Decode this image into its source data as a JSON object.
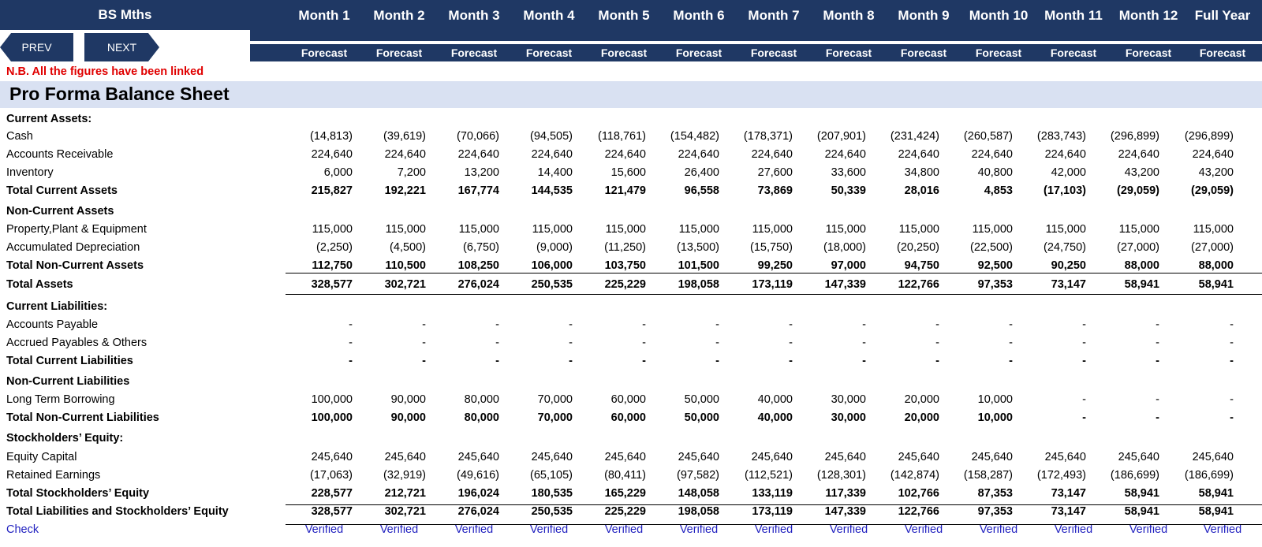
{
  "header": {
    "title": "BS Mths",
    "months": [
      "Month 1",
      "Month 2",
      "Month 3",
      "Month 4",
      "Month 5",
      "Month 6",
      "Month 7",
      "Month 8",
      "Month 9",
      "Month 10",
      "Month 11",
      "Month 12",
      "Full Year"
    ],
    "subheader": [
      "Forecast",
      "Forecast",
      "Forecast",
      "Forecast",
      "Forecast",
      "Forecast",
      "Forecast",
      "Forecast",
      "Forecast",
      "Forecast",
      "Forecast",
      "Forecast",
      "Forecast"
    ]
  },
  "nav": {
    "prev_label": "PREV",
    "next_label": "NEXT"
  },
  "note": "N.B. All the figures have been linked",
  "section_title": "Pro Forma Balance Sheet",
  "colors": {
    "header_bg": "#1f3864",
    "section_bg": "#d9e1f2",
    "note": "#e00000",
    "check": "#1f1fbf"
  },
  "rows": [
    {
      "label": "Current Assets:",
      "style": "head",
      "values": []
    },
    {
      "label": "Cash",
      "style": "normal",
      "values": [
        "(14,813)",
        "(39,619)",
        "(70,066)",
        "(94,505)",
        "(118,761)",
        "(154,482)",
        "(178,371)",
        "(207,901)",
        "(231,424)",
        "(260,587)",
        "(283,743)",
        "(296,899)",
        "(296,899)"
      ]
    },
    {
      "label": "Accounts Receivable",
      "style": "normal",
      "values": [
        "224,640",
        "224,640",
        "224,640",
        "224,640",
        "224,640",
        "224,640",
        "224,640",
        "224,640",
        "224,640",
        "224,640",
        "224,640",
        "224,640",
        "224,640"
      ]
    },
    {
      "label": "Inventory",
      "style": "normal",
      "values": [
        "6,000",
        "7,200",
        "13,200",
        "14,400",
        "15,600",
        "26,400",
        "27,600",
        "33,600",
        "34,800",
        "40,800",
        "42,000",
        "43,200",
        "43,200"
      ]
    },
    {
      "label": "Total Current Assets",
      "style": "bold",
      "values": [
        "215,827",
        "192,221",
        "167,774",
        "144,535",
        "121,479",
        "96,558",
        "73,869",
        "50,339",
        "28,016",
        "4,853",
        "(17,103)",
        "(29,059)",
        "(29,059)"
      ]
    },
    {
      "label": "Non-Current Assets",
      "style": "head",
      "values": []
    },
    {
      "label": "Property,Plant & Equipment",
      "style": "normal",
      "values": [
        "115,000",
        "115,000",
        "115,000",
        "115,000",
        "115,000",
        "115,000",
        "115,000",
        "115,000",
        "115,000",
        "115,000",
        "115,000",
        "115,000",
        "115,000"
      ]
    },
    {
      "label": "Accumulated Depreciation",
      "style": "normal",
      "values": [
        "(2,250)",
        "(4,500)",
        "(6,750)",
        "(9,000)",
        "(11,250)",
        "(13,500)",
        "(15,750)",
        "(18,000)",
        "(20,250)",
        "(22,500)",
        "(24,750)",
        "(27,000)",
        "(27,000)"
      ]
    },
    {
      "label": "Total Non-Current Assets",
      "style": "bold",
      "values": [
        "112,750",
        "110,500",
        "108,250",
        "106,000",
        "103,750",
        "101,500",
        "99,250",
        "97,000",
        "94,750",
        "92,500",
        "90,250",
        "88,000",
        "88,000"
      ]
    },
    {
      "label": "Total Assets",
      "style": "bold",
      "values": [
        "328,577",
        "302,721",
        "276,024",
        "250,535",
        "225,229",
        "198,058",
        "173,119",
        "147,339",
        "122,766",
        "97,353",
        "73,147",
        "58,941",
        "58,941"
      ]
    },
    {
      "label": "Current Liabilities:",
      "style": "head",
      "values": []
    },
    {
      "label": "Accounts Payable",
      "style": "normal",
      "values": [
        "-",
        "-",
        "-",
        "-",
        "-",
        "-",
        "-",
        "-",
        "-",
        "-",
        "-",
        "-",
        "-"
      ]
    },
    {
      "label": "Accrued Payables & Others",
      "style": "normal",
      "values": [
        "-",
        "-",
        "-",
        "-",
        "-",
        "-",
        "-",
        "-",
        "-",
        "-",
        "-",
        "-",
        "-"
      ]
    },
    {
      "label": "Total Current Liabilities",
      "style": "bold",
      "values": [
        "-",
        "-",
        "-",
        "-",
        "-",
        "-",
        "-",
        "-",
        "-",
        "-",
        "-",
        "-",
        "-"
      ]
    },
    {
      "label": "Non-Current Liabilities",
      "style": "head",
      "values": []
    },
    {
      "label": "Long Term Borrowing",
      "style": "normal",
      "values": [
        "100,000",
        "90,000",
        "80,000",
        "70,000",
        "60,000",
        "50,000",
        "40,000",
        "30,000",
        "20,000",
        "10,000",
        "-",
        "-",
        "-"
      ]
    },
    {
      "label": "Total Non-Current Liabilities",
      "style": "bold",
      "values": [
        "100,000",
        "90,000",
        "80,000",
        "70,000",
        "60,000",
        "50,000",
        "40,000",
        "30,000",
        "20,000",
        "10,000",
        "-",
        "-",
        "-"
      ]
    },
    {
      "label": "Stockholders’ Equity:",
      "style": "head",
      "values": []
    },
    {
      "label": "Equity Capital",
      "style": "normal",
      "values": [
        "245,640",
        "245,640",
        "245,640",
        "245,640",
        "245,640",
        "245,640",
        "245,640",
        "245,640",
        "245,640",
        "245,640",
        "245,640",
        "245,640",
        "245,640"
      ]
    },
    {
      "label": "Retained Earnings",
      "style": "normal",
      "values": [
        "(17,063)",
        "(32,919)",
        "(49,616)",
        "(65,105)",
        "(80,411)",
        "(97,582)",
        "(112,521)",
        "(128,301)",
        "(142,874)",
        "(158,287)",
        "(172,493)",
        "(186,699)",
        "(186,699)"
      ]
    },
    {
      "label": "Total Stockholders’ Equity",
      "style": "bold",
      "values": [
        "228,577",
        "212,721",
        "196,024",
        "180,535",
        "165,229",
        "148,058",
        "133,119",
        "117,339",
        "102,766",
        "87,353",
        "73,147",
        "58,941",
        "58,941"
      ]
    },
    {
      "label": "Total Liabilities and Stockholders’ Equity",
      "style": "bold",
      "values": [
        "328,577",
        "302,721",
        "276,024",
        "250,535",
        "225,229",
        "198,058",
        "173,119",
        "147,339",
        "122,766",
        "97,353",
        "73,147",
        "58,941",
        "58,941"
      ]
    },
    {
      "label": "Check",
      "style": "check",
      "values": [
        "Verified",
        "Verified",
        "Verified",
        "Verified",
        "Verified",
        "Verified",
        "Verified",
        "Verified",
        "Verified",
        "Verified",
        "Verified",
        "Verified",
        "Verified"
      ]
    }
  ]
}
